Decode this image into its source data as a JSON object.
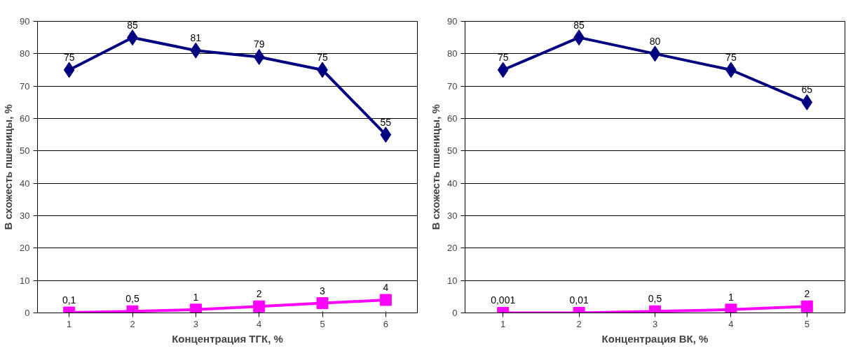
{
  "chart_data": [
    {
      "type": "line",
      "xlabel": "Концентрация ТГК, %",
      "ylabel": "В схожесть пшеницы, %",
      "categories": [
        "1",
        "2",
        "3",
        "4",
        "5",
        "6"
      ],
      "ylim": [
        0,
        90
      ],
      "yticks": [
        0,
        10,
        20,
        30,
        40,
        50,
        60,
        70,
        80,
        90
      ],
      "grid": "y",
      "series": [
        {
          "color": "#000080",
          "marker": "diamond",
          "values": [
            75,
            85,
            81,
            79,
            75,
            55
          ],
          "value_labels": [
            "75",
            "85",
            "81",
            "79",
            "75",
            "55"
          ]
        },
        {
          "color": "#ff00ff",
          "marker": "square",
          "values": [
            0.1,
            0.5,
            1,
            2,
            3,
            4
          ],
          "value_labels": [
            "0,1",
            "0,5",
            "1",
            "2",
            "3",
            "4"
          ]
        }
      ]
    },
    {
      "type": "line",
      "xlabel": "Концентрация ВК, %",
      "ylabel": "В схожесть пшеницы, %",
      "categories": [
        "1",
        "2",
        "3",
        "4",
        "5"
      ],
      "ylim": [
        0,
        90
      ],
      "yticks": [
        0,
        10,
        20,
        30,
        40,
        50,
        60,
        70,
        80,
        90
      ],
      "grid": "y",
      "series": [
        {
          "color": "#000080",
          "marker": "diamond",
          "values": [
            75,
            85,
            80,
            75,
            65
          ],
          "value_labels": [
            "75",
            "85",
            "80",
            "75",
            "65"
          ]
        },
        {
          "color": "#ff00ff",
          "marker": "square",
          "values": [
            0.001,
            0.01,
            0.5,
            1,
            2
          ],
          "value_labels": [
            "0,001",
            "0,01",
            "0,5",
            "1",
            "2"
          ]
        }
      ]
    }
  ]
}
